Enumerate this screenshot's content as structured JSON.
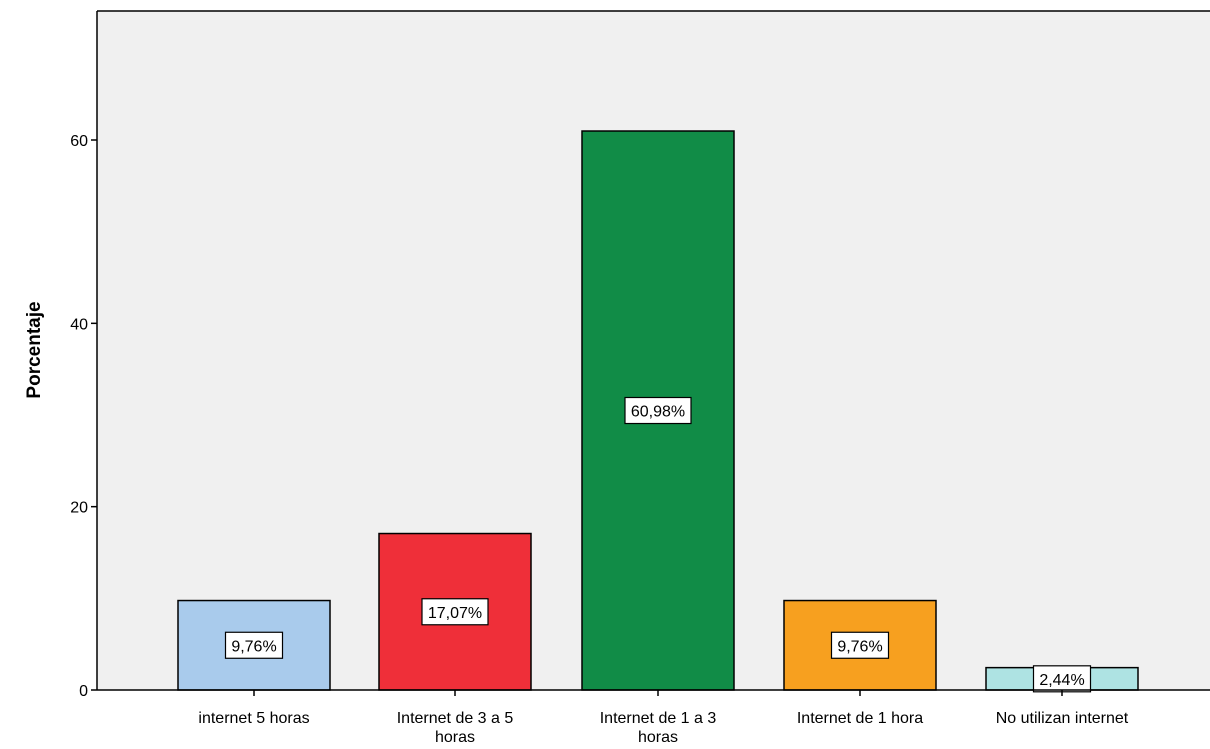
{
  "chart_data": {
    "type": "bar",
    "ylabel": "Porcentaje",
    "xlabel": "",
    "ylim": [
      0,
      73
    ],
    "yticks": [
      0,
      20,
      40,
      60
    ],
    "grid": false,
    "categories": [
      [
        "internet 5 horas"
      ],
      [
        "Internet de 3 a 5",
        "horas"
      ],
      [
        "Internet de 1 a 3",
        "horas"
      ],
      [
        "Internet de 1 hora"
      ],
      [
        "No utilizan internet"
      ]
    ],
    "values": [
      9.76,
      17.07,
      60.98,
      9.76,
      2.44
    ],
    "data_labels": [
      "9,76%",
      "17,07%",
      "60,98%",
      "9,76%",
      "2,44%"
    ],
    "colors": [
      "#a9cbec",
      "#ef2f39",
      "#118c47",
      "#f7a01f",
      "#aee3e3"
    ],
    "plot_background": "#f0f0f0"
  }
}
